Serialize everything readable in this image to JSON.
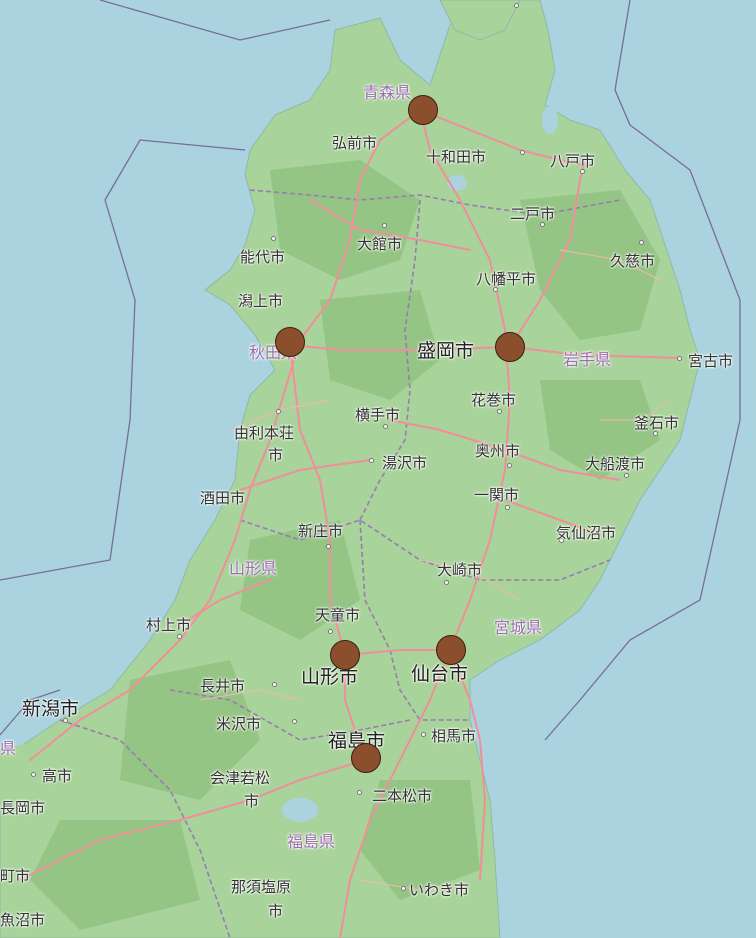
{
  "map": {
    "colors": {
      "sea": "#aad3df",
      "land": "#a8d39a",
      "forest": "#8fc27f",
      "road": "#f28e9b",
      "boundary": "#7a6b9a",
      "marker": "#8b4f2d"
    },
    "prefectures": [
      "青森県",
      "秋田県",
      "岩手県",
      "山形県",
      "宮城県",
      "福島県"
    ],
    "cities": [
      "弘前市",
      "十和田市",
      "八戸市",
      "二戸市",
      "大館市",
      "能代市",
      "久慈市",
      "八幡平市",
      "潟上市",
      "盛岡市",
      "宮古市",
      "花巻市",
      "横手市",
      "釜石市",
      "由利本荘",
      "市",
      "湯沢市",
      "奥州市",
      "大船渡市",
      "酒田市",
      "一関市",
      "新庄市",
      "気仙沼市",
      "大崎市",
      "村上市",
      "天童市",
      "山形市",
      "仙台市",
      "長井市",
      "新潟市",
      "米沢市",
      "福島市",
      "相馬市",
      "高市",
      "会津若松",
      "市",
      "二本松市",
      "長岡市",
      "那須塩原",
      "市",
      "いわき市",
      "町市",
      "魚沼市",
      "県"
    ],
    "markers": [
      {
        "name": "marker-aomori",
        "label": "青森"
      },
      {
        "name": "marker-akita",
        "label": "秋田"
      },
      {
        "name": "marker-morioka",
        "label": "盛岡"
      },
      {
        "name": "marker-yamagata",
        "label": "山形"
      },
      {
        "name": "marker-sendai",
        "label": "仙台"
      },
      {
        "name": "marker-fukushima",
        "label": "福島"
      }
    ]
  }
}
